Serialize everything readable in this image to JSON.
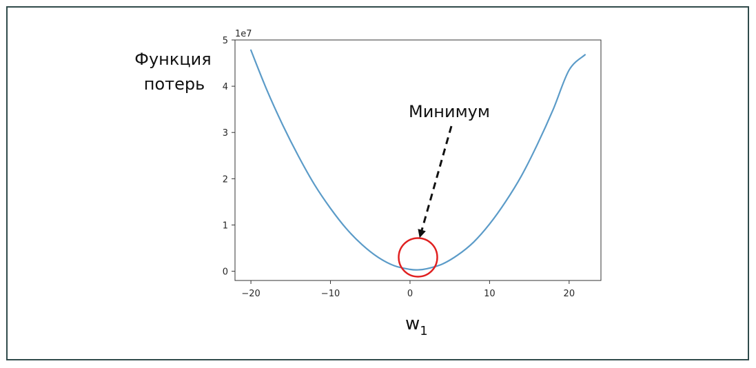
{
  "chart_data": {
    "type": "line",
    "ylabel": "Функция потерь",
    "ylabel_lines": [
      "Функция",
      "потерь"
    ],
    "xlabel_base": "w",
    "xlabel_sub": "1",
    "y_scale_label": "1e7",
    "xlim": [
      -22,
      24
    ],
    "ylim": [
      -0.2,
      5.0
    ],
    "y_multiplier": 10000000,
    "x_ticks": [
      -20,
      -10,
      0,
      10,
      20
    ],
    "x_tick_labels": [
      "−20",
      "−10",
      "0",
      "10",
      "20"
    ],
    "y_ticks": [
      0,
      1,
      2,
      3,
      4,
      5
    ],
    "y_tick_labels": [
      "0",
      "1",
      "2",
      "3",
      "4",
      "5"
    ],
    "series": [
      {
        "color": "#5b9bc8",
        "x": [
          -20,
          -18,
          -16,
          -14,
          -12,
          -10,
          -8,
          -6,
          -4,
          -2,
          0,
          1,
          2,
          4,
          6,
          8,
          10,
          12,
          14,
          16,
          18,
          20,
          22
        ],
        "y": [
          4.78,
          3.92,
          3.16,
          2.48,
          1.87,
          1.36,
          0.92,
          0.57,
          0.3,
          0.12,
          0.04,
          0.03,
          0.05,
          0.15,
          0.35,
          0.63,
          1.02,
          1.5,
          2.06,
          2.74,
          3.5,
          4.35,
          4.68
        ]
      }
    ],
    "annotation": {
      "text": "Минимум",
      "x": 1,
      "y": 0.3,
      "circle_color": "#e02020",
      "arrow_color": "#111111"
    },
    "grid": false
  }
}
